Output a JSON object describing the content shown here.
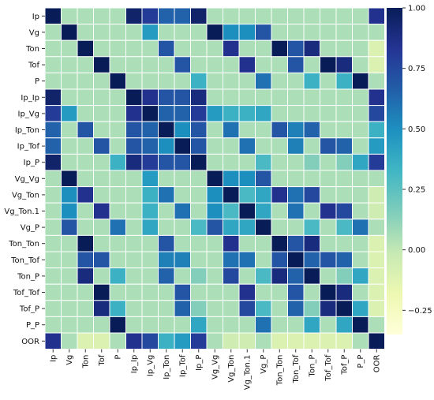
{
  "chart_data": {
    "type": "heatmap",
    "title": "",
    "xlabel": "",
    "ylabel": "",
    "labels": [
      "Ip",
      "Vg",
      "Ton",
      "Tof",
      "P",
      "Ip_Ip",
      "Ip_Vg",
      "Ip_Ton",
      "Ip_Tof",
      "Ip_P",
      "Vg_Vg",
      "Vg_Ton",
      "Vg_Ton.1",
      "Vg_P",
      "Ton_Ton",
      "Ton_Tof",
      "Ton_P",
      "Tof_Tof",
      "Tof_P",
      "P_P",
      "OOR"
    ],
    "x_categories": [
      "Ip",
      "Vg",
      "Ton",
      "Tof",
      "P",
      "Ip_Ip",
      "Ip_Vg",
      "Ip_Ton",
      "Ip_Tof",
      "Ip_P",
      "Vg_Vg",
      "Vg_Ton",
      "Vg_Ton.1",
      "Vg_P",
      "Ton_Ton",
      "Ton_Tof",
      "Ton_P",
      "Tof_Tof",
      "Tof_P",
      "P_P",
      "OOR"
    ],
    "colorbar": {
      "min": -0.35,
      "max": 1.0,
      "ticks": [
        1.0,
        0.75,
        0.5,
        0.25,
        0.0,
        -0.25
      ],
      "tick_labels": [
        "1.00",
        "0.75",
        "0.50",
        "0.25",
        "0.00",
        "−0.25"
      ],
      "colormap": "YlGnBu",
      "stops": [
        [
          0.0,
          "#ffffd9"
        ],
        [
          0.125,
          "#edf8b1"
        ],
        [
          0.25,
          "#c7e9b4"
        ],
        [
          0.375,
          "#7fcdbb"
        ],
        [
          0.5,
          "#41b6c4"
        ],
        [
          0.625,
          "#1d91c0"
        ],
        [
          0.75,
          "#225ea8"
        ],
        [
          0.875,
          "#253494"
        ],
        [
          1.0,
          "#081d58"
        ]
      ]
    },
    "grid_lines": true,
    "matrix": [
      [
        1.0,
        0.05,
        0.05,
        0.05,
        0.05,
        0.95,
        0.8,
        0.65,
        0.65,
        0.95,
        0.05,
        0.05,
        0.05,
        0.05,
        0.05,
        0.05,
        0.05,
        0.05,
        0.05,
        0.05,
        0.85
      ],
      [
        0.05,
        1.0,
        0.05,
        0.05,
        0.05,
        0.05,
        0.45,
        0.05,
        0.05,
        0.05,
        1.0,
        0.5,
        0.5,
        0.7,
        0.05,
        0.05,
        0.05,
        0.05,
        0.05,
        0.05,
        0.05
      ],
      [
        0.05,
        0.05,
        1.0,
        0.05,
        0.05,
        0.05,
        0.05,
        0.7,
        0.05,
        0.05,
        0.05,
        0.85,
        0.05,
        0.05,
        1.0,
        0.7,
        0.9,
        0.05,
        0.05,
        0.05,
        -0.1
      ],
      [
        0.05,
        0.05,
        0.05,
        1.0,
        0.05,
        0.05,
        0.05,
        0.05,
        0.7,
        0.05,
        0.05,
        0.05,
        0.85,
        0.05,
        0.05,
        0.7,
        0.05,
        1.0,
        0.9,
        0.05,
        -0.1
      ],
      [
        0.05,
        0.05,
        0.05,
        0.05,
        1.0,
        0.05,
        0.05,
        0.05,
        0.05,
        0.35,
        0.05,
        0.05,
        0.05,
        0.6,
        0.05,
        0.05,
        0.35,
        0.05,
        0.35,
        1.0,
        0.05
      ],
      [
        0.95,
        0.05,
        0.05,
        0.05,
        0.05,
        1.0,
        0.85,
        0.7,
        0.7,
        0.9,
        0.05,
        0.05,
        0.05,
        0.05,
        0.05,
        0.05,
        0.05,
        0.05,
        0.05,
        0.05,
        0.85
      ],
      [
        0.8,
        0.45,
        0.05,
        0.05,
        0.05,
        0.85,
        1.0,
        0.65,
        0.65,
        0.8,
        0.45,
        0.35,
        0.35,
        0.4,
        0.05,
        0.05,
        0.05,
        0.05,
        0.05,
        0.05,
        0.75
      ],
      [
        0.65,
        0.05,
        0.7,
        0.05,
        0.05,
        0.7,
        0.65,
        1.0,
        0.5,
        0.7,
        0.05,
        0.6,
        0.05,
        0.05,
        0.7,
        0.55,
        0.65,
        0.05,
        0.05,
        0.05,
        0.35
      ],
      [
        0.65,
        0.05,
        0.05,
        0.7,
        0.05,
        0.7,
        0.65,
        0.5,
        1.0,
        0.7,
        0.05,
        0.05,
        0.6,
        0.05,
        0.05,
        0.55,
        0.05,
        0.7,
        0.65,
        0.05,
        0.45
      ],
      [
        0.95,
        0.05,
        0.05,
        0.05,
        0.35,
        0.9,
        0.8,
        0.7,
        0.7,
        1.0,
        0.05,
        0.05,
        0.05,
        0.3,
        0.05,
        0.05,
        0.15,
        0.05,
        0.15,
        0.4,
        0.8
      ],
      [
        0.05,
        1.0,
        0.05,
        0.05,
        0.05,
        0.05,
        0.45,
        0.05,
        0.05,
        0.05,
        1.0,
        0.5,
        0.5,
        0.7,
        0.05,
        0.05,
        0.05,
        0.05,
        0.05,
        0.05,
        0.05
      ],
      [
        0.05,
        0.5,
        0.85,
        0.05,
        0.05,
        0.05,
        0.35,
        0.6,
        0.05,
        0.05,
        0.5,
        1.0,
        0.3,
        0.4,
        0.85,
        0.6,
        0.75,
        0.05,
        0.05,
        0.05,
        -0.05
      ],
      [
        0.05,
        0.5,
        0.05,
        0.85,
        0.05,
        0.05,
        0.35,
        0.05,
        0.6,
        0.05,
        0.5,
        0.3,
        1.0,
        0.4,
        0.05,
        0.6,
        0.05,
        0.85,
        0.75,
        0.05,
        -0.05
      ],
      [
        0.05,
        0.7,
        0.05,
        0.05,
        0.6,
        0.05,
        0.4,
        0.05,
        0.05,
        0.3,
        0.7,
        0.4,
        0.4,
        1.0,
        0.05,
        0.05,
        0.3,
        0.05,
        0.3,
        0.6,
        0.05
      ],
      [
        0.05,
        0.05,
        1.0,
        0.05,
        0.05,
        0.05,
        0.05,
        0.7,
        0.05,
        0.05,
        0.05,
        0.85,
        0.05,
        0.05,
        1.0,
        0.7,
        0.9,
        0.05,
        0.05,
        0.05,
        -0.1
      ],
      [
        0.05,
        0.05,
        0.7,
        0.7,
        0.05,
        0.05,
        0.05,
        0.55,
        0.55,
        0.05,
        0.05,
        0.6,
        0.6,
        0.05,
        0.7,
        1.0,
        0.65,
        0.7,
        0.65,
        0.05,
        -0.1
      ],
      [
        0.05,
        0.05,
        0.9,
        0.05,
        0.35,
        0.05,
        0.05,
        0.65,
        0.05,
        0.15,
        0.05,
        0.75,
        0.05,
        0.3,
        0.9,
        0.65,
        1.0,
        0.05,
        0.15,
        0.4,
        -0.1
      ],
      [
        0.05,
        0.05,
        0.05,
        1.0,
        0.05,
        0.05,
        0.05,
        0.05,
        0.7,
        0.05,
        0.05,
        0.05,
        0.85,
        0.05,
        0.05,
        0.7,
        0.05,
        1.0,
        0.9,
        0.05,
        -0.1
      ],
      [
        0.05,
        0.05,
        0.05,
        0.9,
        0.35,
        0.05,
        0.05,
        0.05,
        0.65,
        0.15,
        0.05,
        0.05,
        0.75,
        0.3,
        0.05,
        0.65,
        0.15,
        0.9,
        1.0,
        0.4,
        -0.1
      ],
      [
        0.05,
        0.05,
        0.05,
        0.05,
        1.0,
        0.05,
        0.05,
        0.05,
        0.05,
        0.4,
        0.05,
        0.05,
        0.05,
        0.6,
        0.05,
        0.05,
        0.4,
        0.05,
        0.4,
        1.0,
        0.05
      ],
      [
        0.85,
        0.05,
        -0.1,
        -0.1,
        0.05,
        0.85,
        0.75,
        0.35,
        0.45,
        0.8,
        0.05,
        -0.05,
        -0.05,
        0.05,
        -0.1,
        -0.1,
        -0.1,
        -0.1,
        -0.1,
        0.05,
        1.0
      ]
    ]
  }
}
